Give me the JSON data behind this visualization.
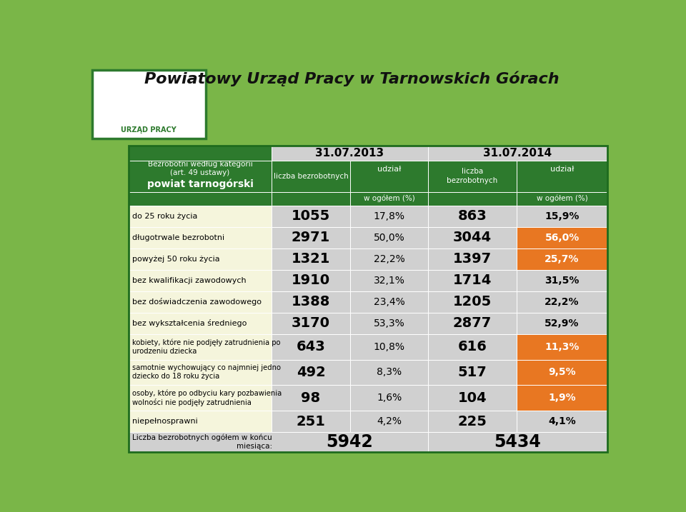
{
  "title": "Powiatowy Urząd Pracy w Tarnowskich Górach",
  "bg_color": "#7ab648",
  "header_green": "#2d7a2d",
  "orange_color": "#e87722",
  "light_yellow": "#f5f5dc",
  "light_gray": "#d0d0d0",
  "col_header_2013": "31.07.2013",
  "col_header_2014": "31.07.2014",
  "col_sub1": "liczba bezrobotnych",
  "col_sub2": "udział",
  "col_sub3": "liczba\nbezrobotnych",
  "col_sub4": "udział",
  "col_sub_bottom": "w ogółem (%)",
  "header_left1": "Bezrobotni według kategorii\n(art. 49 ustawy)",
  "header_left2": "powiat tarnogórski",
  "rows": [
    {
      "label": "do 25 roku życia",
      "n2013": "1055",
      "p2013": "17,8%",
      "n2014": "863",
      "p2014": "15,9%",
      "orange": false
    },
    {
      "label": "długotrwale bezrobotni",
      "n2013": "2971",
      "p2013": "50,0%",
      "n2014": "3044",
      "p2014": "56,0%",
      "orange": true
    },
    {
      "label": "powyżej 50 roku życia",
      "n2013": "1321",
      "p2013": "22,2%",
      "n2014": "1397",
      "p2014": "25,7%",
      "orange": true
    },
    {
      "label": "bez kwalifikacji zawodowych",
      "n2013": "1910",
      "p2013": "32,1%",
      "n2014": "1714",
      "p2014": "31,5%",
      "orange": false
    },
    {
      "label": "bez doświadczenia zawodowego",
      "n2013": "1388",
      "p2013": "23,4%",
      "n2014": "1205",
      "p2014": "22,2%",
      "orange": false
    },
    {
      "label": "bez wykształcenia średniego",
      "n2013": "3170",
      "p2013": "53,3%",
      "n2014": "2877",
      "p2014": "52,9%",
      "orange": false
    },
    {
      "label": "kobiety, które nie podjęły zatrudnienia po\nurodzeniu dziecka",
      "bold_part": "kobiety",
      "n2013": "643",
      "p2013": "10,8%",
      "n2014": "616",
      "p2014": "11,3%",
      "orange": true
    },
    {
      "label": "samotnie wychowujący co najmniej jedno\ndziecko do 18 roku życia",
      "bold_part": "samotnie wychowujący",
      "n2013": "492",
      "p2013": "8,3%",
      "n2014": "517",
      "p2014": "9,5%",
      "orange": true
    },
    {
      "label": "osoby, które po odbyciu kary pozbawienia\nwolności nie podjęły zatrudnienia",
      "bold_part": "po odbyciu kary pozbawienia",
      "n2013": "98",
      "p2013": "1,6%",
      "n2014": "104",
      "p2014": "1,9%",
      "orange": true
    },
    {
      "label": "niepełnosprawni",
      "n2013": "251",
      "p2013": "4,2%",
      "n2014": "225",
      "p2014": "4,1%",
      "orange": false
    }
  ],
  "footer_label": "Liczba bezrobotnych ogółem w końcu\nmiesiąca:",
  "footer_2013": "5942",
  "footer_2014": "5434"
}
